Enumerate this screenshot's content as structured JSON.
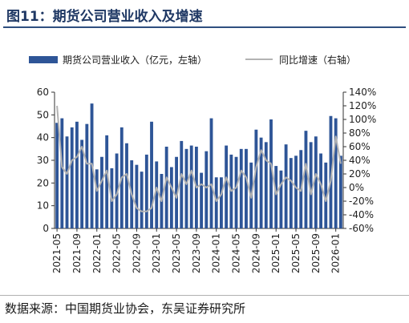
{
  "figure": {
    "title": "图11：期货公司营业收入及增速",
    "source": "数据来源：中国期货业协会，东吴证券研究所"
  },
  "colors": {
    "bar": "#2e5597",
    "line": "#b3b3b3",
    "title": "#1f3864",
    "axis": "#333333"
  },
  "chart_data": {
    "type": "bar",
    "series": [
      {
        "name": "期货公司营业收入（亿元，左轴）",
        "type": "bar",
        "axis": "left",
        "values": [
          46.5,
          48.5,
          40.5,
          44.5,
          47,
          39,
          46,
          55,
          26,
          31.5,
          41,
          26.5,
          33,
          44.5,
          37.5,
          30,
          28,
          25,
          32.5,
          47,
          29.5,
          24,
          36,
          27,
          31.5,
          38.5,
          35,
          36.5,
          36,
          24.5,
          34,
          48.5,
          22.5,
          22.5,
          36.5,
          32.5,
          31.5,
          35,
          35,
          29,
          43.5,
          40,
          38,
          48,
          27.5,
          25.5,
          37,
          31,
          32,
          34.5,
          43,
          38,
          40.5,
          33,
          29,
          49.5,
          48.5,
          32
        ]
      },
      {
        "name": "同比增速（右轴）",
        "type": "line",
        "axis": "right",
        "values": [
          120,
          30,
          20,
          40,
          45,
          60,
          35,
          35,
          -5,
          10,
          25,
          -20,
          -10,
          15,
          20,
          -10,
          -30,
          -35,
          -35,
          -30,
          0,
          -20,
          15,
          0,
          -15,
          20,
          5,
          25,
          0,
          5,
          0,
          5,
          -20,
          -10,
          15,
          -5,
          0,
          25,
          15,
          -15,
          30,
          55,
          40,
          35,
          -10,
          5,
          15,
          10,
          0,
          -5,
          35,
          -10,
          20,
          5,
          -20,
          10,
          75,
          35
        ]
      }
    ],
    "x_tick_labels": [
      "2021-05",
      "2021-09",
      "2022-01",
      "2022-05",
      "2022-09",
      "2023-01",
      "2023-05",
      "2023-09",
      "2024-01",
      "2024-05",
      "2024-09",
      "2025-01",
      "2025-05",
      "2025-09",
      "2026-01"
    ],
    "tick_every": 4,
    "y_left": {
      "min": 0,
      "max": 60,
      "step": 10,
      "tick_labels": [
        "0",
        "10",
        "20",
        "30",
        "40",
        "50",
        "60"
      ]
    },
    "y_right": {
      "min": -60,
      "max": 140,
      "step": 20,
      "tick_labels": [
        "-60%",
        "-40%",
        "-20%",
        "0%",
        "20%",
        "40%",
        "60%",
        "80%",
        "100%",
        "120%",
        "140%"
      ]
    },
    "legend_position": "top",
    "grid": false
  }
}
